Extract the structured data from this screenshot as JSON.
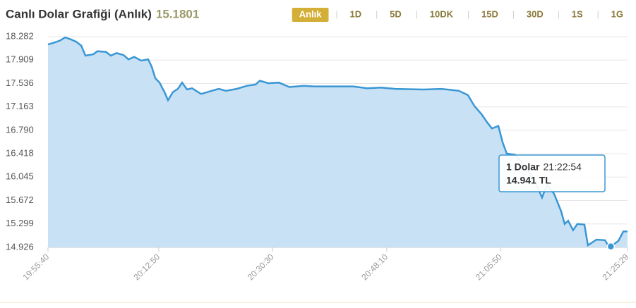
{
  "chart_data": {
    "type": "area",
    "title": "Canlı Dolar Grafiği (Anlık)",
    "subtitle": "15.1801",
    "buttons": [
      "Anlık",
      "1D",
      "5D",
      "10DK",
      "15D",
      "30D",
      "1S",
      "1G"
    ],
    "active_button": "Anlık",
    "x": [
      "19:55:40",
      "19:56:26",
      "19:57:32",
      "19:58:18",
      "19:59:10",
      "20:00:03",
      "20:00:49",
      "20:01:28",
      "20:02:40",
      "20:03:19",
      "20:04:38",
      "20:05:24",
      "20:06:17",
      "20:07:22",
      "20:08:08",
      "20:09:01",
      "20:10:06",
      "20:11:12",
      "20:11:45",
      "20:12:18",
      "20:12:57",
      "20:13:43",
      "20:14:16",
      "20:15:02",
      "20:15:48",
      "20:16:27",
      "20:17:13",
      "20:17:59",
      "20:19:24",
      "20:21:03",
      "20:22:08",
      "20:23:14",
      "20:24:53",
      "20:26:31",
      "20:27:50",
      "20:28:30",
      "20:29:48",
      "20:31:27",
      "20:33:05",
      "20:35:16",
      "20:36:55",
      "20:40:44",
      "20:42:56",
      "20:45:07",
      "20:47:18",
      "20:49:29",
      "20:53:52",
      "20:56:36",
      "20:59:20",
      "21:00:45",
      "21:01:44",
      "21:02:50",
      "21:03:42",
      "21:04:28",
      "21:05:28",
      "21:06:07",
      "21:06:46",
      "21:08:05",
      "21:09:43",
      "21:11:22",
      "21:12:14",
      "21:13:00",
      "21:14:06",
      "21:15:12",
      "21:15:44",
      "21:16:17",
      "21:17:03",
      "21:17:43",
      "21:18:48",
      "21:19:21",
      "21:20:40",
      "21:21:59",
      "21:22:32",
      "21:22:54",
      "21:24:04",
      "21:24:50",
      "21:25:29"
    ],
    "series": [
      {
        "name": "1 Dolar",
        "color": "#3a97d4",
        "fill": "#c8e1f5",
        "values": [
          18.16,
          18.18,
          18.22,
          18.27,
          18.24,
          18.2,
          18.14,
          17.98,
          18.0,
          18.05,
          18.04,
          17.98,
          18.02,
          17.99,
          17.92,
          17.96,
          17.9,
          17.92,
          17.8,
          17.62,
          17.55,
          17.4,
          17.27,
          17.4,
          17.45,
          17.55,
          17.44,
          17.46,
          17.37,
          17.42,
          17.45,
          17.42,
          17.45,
          17.5,
          17.52,
          17.58,
          17.54,
          17.55,
          17.48,
          17.5,
          17.49,
          17.49,
          17.49,
          17.46,
          17.47,
          17.45,
          17.44,
          17.45,
          17.42,
          17.35,
          17.18,
          17.05,
          16.92,
          16.82,
          16.86,
          16.6,
          16.42,
          16.4,
          16.22,
          15.92,
          15.72,
          15.92,
          15.78,
          15.5,
          15.3,
          15.35,
          15.2,
          15.3,
          15.29,
          14.96,
          15.05,
          15.04,
          14.95,
          14.941,
          15.03,
          15.18,
          15.18
        ]
      }
    ],
    "xlim": [
      "19:55:40",
      "21:25:29"
    ],
    "xticks": [
      "19:55:40",
      "20:12:50",
      "20:30:30",
      "20:48:10",
      "21:05:50",
      "21:25:29"
    ],
    "ylim": [
      14.926,
      18.282
    ],
    "yticks": [
      18.282,
      17.909,
      17.536,
      17.163,
      {
        "value": 16.79,
        "label": "16.790"
      },
      16.418,
      16.045,
      15.672,
      15.299,
      14.926
    ],
    "grid": true,
    "tooltip": {
      "title": "1 Dolar",
      "x": "21:22:54",
      "value": 14.941,
      "value_label": "14.941 TL"
    }
  }
}
